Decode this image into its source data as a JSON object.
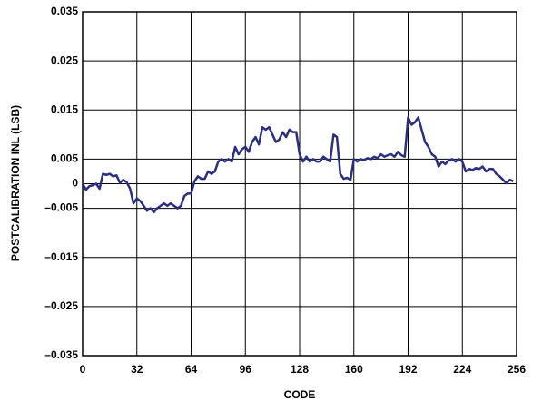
{
  "chart_data": {
    "type": "line",
    "x_label": "CODE",
    "y_label": "POSTCALIBRATION INL (LSB)",
    "x": [
      0,
      2,
      4,
      6,
      8,
      10,
      12,
      14,
      16,
      18,
      20,
      22,
      24,
      26,
      28,
      30,
      32,
      34,
      36,
      38,
      40,
      42,
      44,
      46,
      48,
      50,
      52,
      54,
      56,
      58,
      60,
      62,
      64,
      66,
      68,
      70,
      72,
      74,
      76,
      78,
      80,
      82,
      84,
      86,
      88,
      90,
      92,
      94,
      96,
      98,
      100,
      102,
      104,
      106,
      108,
      110,
      112,
      114,
      116,
      118,
      120,
      122,
      124,
      126,
      128,
      130,
      132,
      134,
      136,
      138,
      140,
      142,
      144,
      146,
      148,
      150,
      152,
      154,
      156,
      158,
      160,
      162,
      164,
      166,
      168,
      170,
      172,
      174,
      176,
      178,
      180,
      182,
      184,
      186,
      188,
      190,
      192,
      194,
      196,
      198,
      200,
      202,
      204,
      206,
      208,
      210,
      212,
      214,
      216,
      218,
      220,
      222,
      224,
      226,
      228,
      230,
      232,
      234,
      236,
      238,
      240,
      242,
      244,
      246,
      248,
      250,
      252,
      254
    ],
    "series": [
      {
        "color": "#2b2f7e",
        "values": [
          0,
          -0.0012,
          -0.0005,
          -0.0003,
          0,
          -0.001,
          0.002,
          0.0018,
          0.002,
          0.0015,
          0.0017,
          0.0002,
          0.0008,
          0.0003,
          -0.001,
          -0.004,
          -0.003,
          -0.0035,
          -0.0045,
          -0.0055,
          -0.005,
          -0.0058,
          -0.005,
          -0.0045,
          -0.004,
          -0.0045,
          -0.004,
          -0.0045,
          -0.005,
          -0.0045,
          -0.0025,
          -0.002,
          -0.002,
          0.0005,
          0.0015,
          0.001,
          0.001,
          0.0025,
          0.002,
          0.0025,
          0.0045,
          0.005,
          0.0045,
          0.005,
          0.0045,
          0.0075,
          0.006,
          0.007,
          0.0075,
          0.0065,
          0.0085,
          0.0095,
          0.008,
          0.0115,
          0.011,
          0.0115,
          0.01,
          0.0085,
          0.009,
          0.0105,
          0.0095,
          0.011,
          0.0105,
          0.0105,
          0.006,
          0.0045,
          0.0055,
          0.0045,
          0.005,
          0.0045,
          0.0045,
          0.0055,
          0.005,
          0.0045,
          0.01,
          0.0095,
          0.002,
          0.001,
          0.0012,
          0.0008,
          0.005,
          0.0045,
          0.005,
          0.0048,
          0.0052,
          0.005,
          0.0055,
          0.0052,
          0.006,
          0.0055,
          0.0058,
          0.006,
          0.0055,
          0.0065,
          0.0058,
          0.0055,
          0.0135,
          0.012,
          0.0125,
          0.0135,
          0.011,
          0.0085,
          0.0075,
          0.006,
          0.0055,
          0.0035,
          0.0045,
          0.004,
          0.0048,
          0.005,
          0.0045,
          0.005,
          0.0045,
          0.0025,
          0.003,
          0.0028,
          0.0032,
          0.003,
          0.0035,
          0.0025,
          0.003,
          0.003,
          0.002,
          0.0015,
          0.0008,
          0.0001,
          0.0008,
          0.0005
        ]
      }
    ],
    "xlim": [
      0,
      256
    ],
    "xticks": [
      0,
      32,
      64,
      96,
      128,
      160,
      192,
      224,
      256
    ],
    "ylim": [
      -0.035,
      0.035
    ],
    "yticks": [
      0.035,
      0.025,
      0.015,
      0.005,
      0,
      {
        "value": -0.005,
        "label": "–0.005"
      },
      {
        "value": -0.015,
        "label": "–0.015"
      },
      {
        "value": -0.025,
        "label": "–0.025"
      },
      {
        "value": -0.035,
        "label": "–0.035"
      }
    ],
    "grid": true
  }
}
